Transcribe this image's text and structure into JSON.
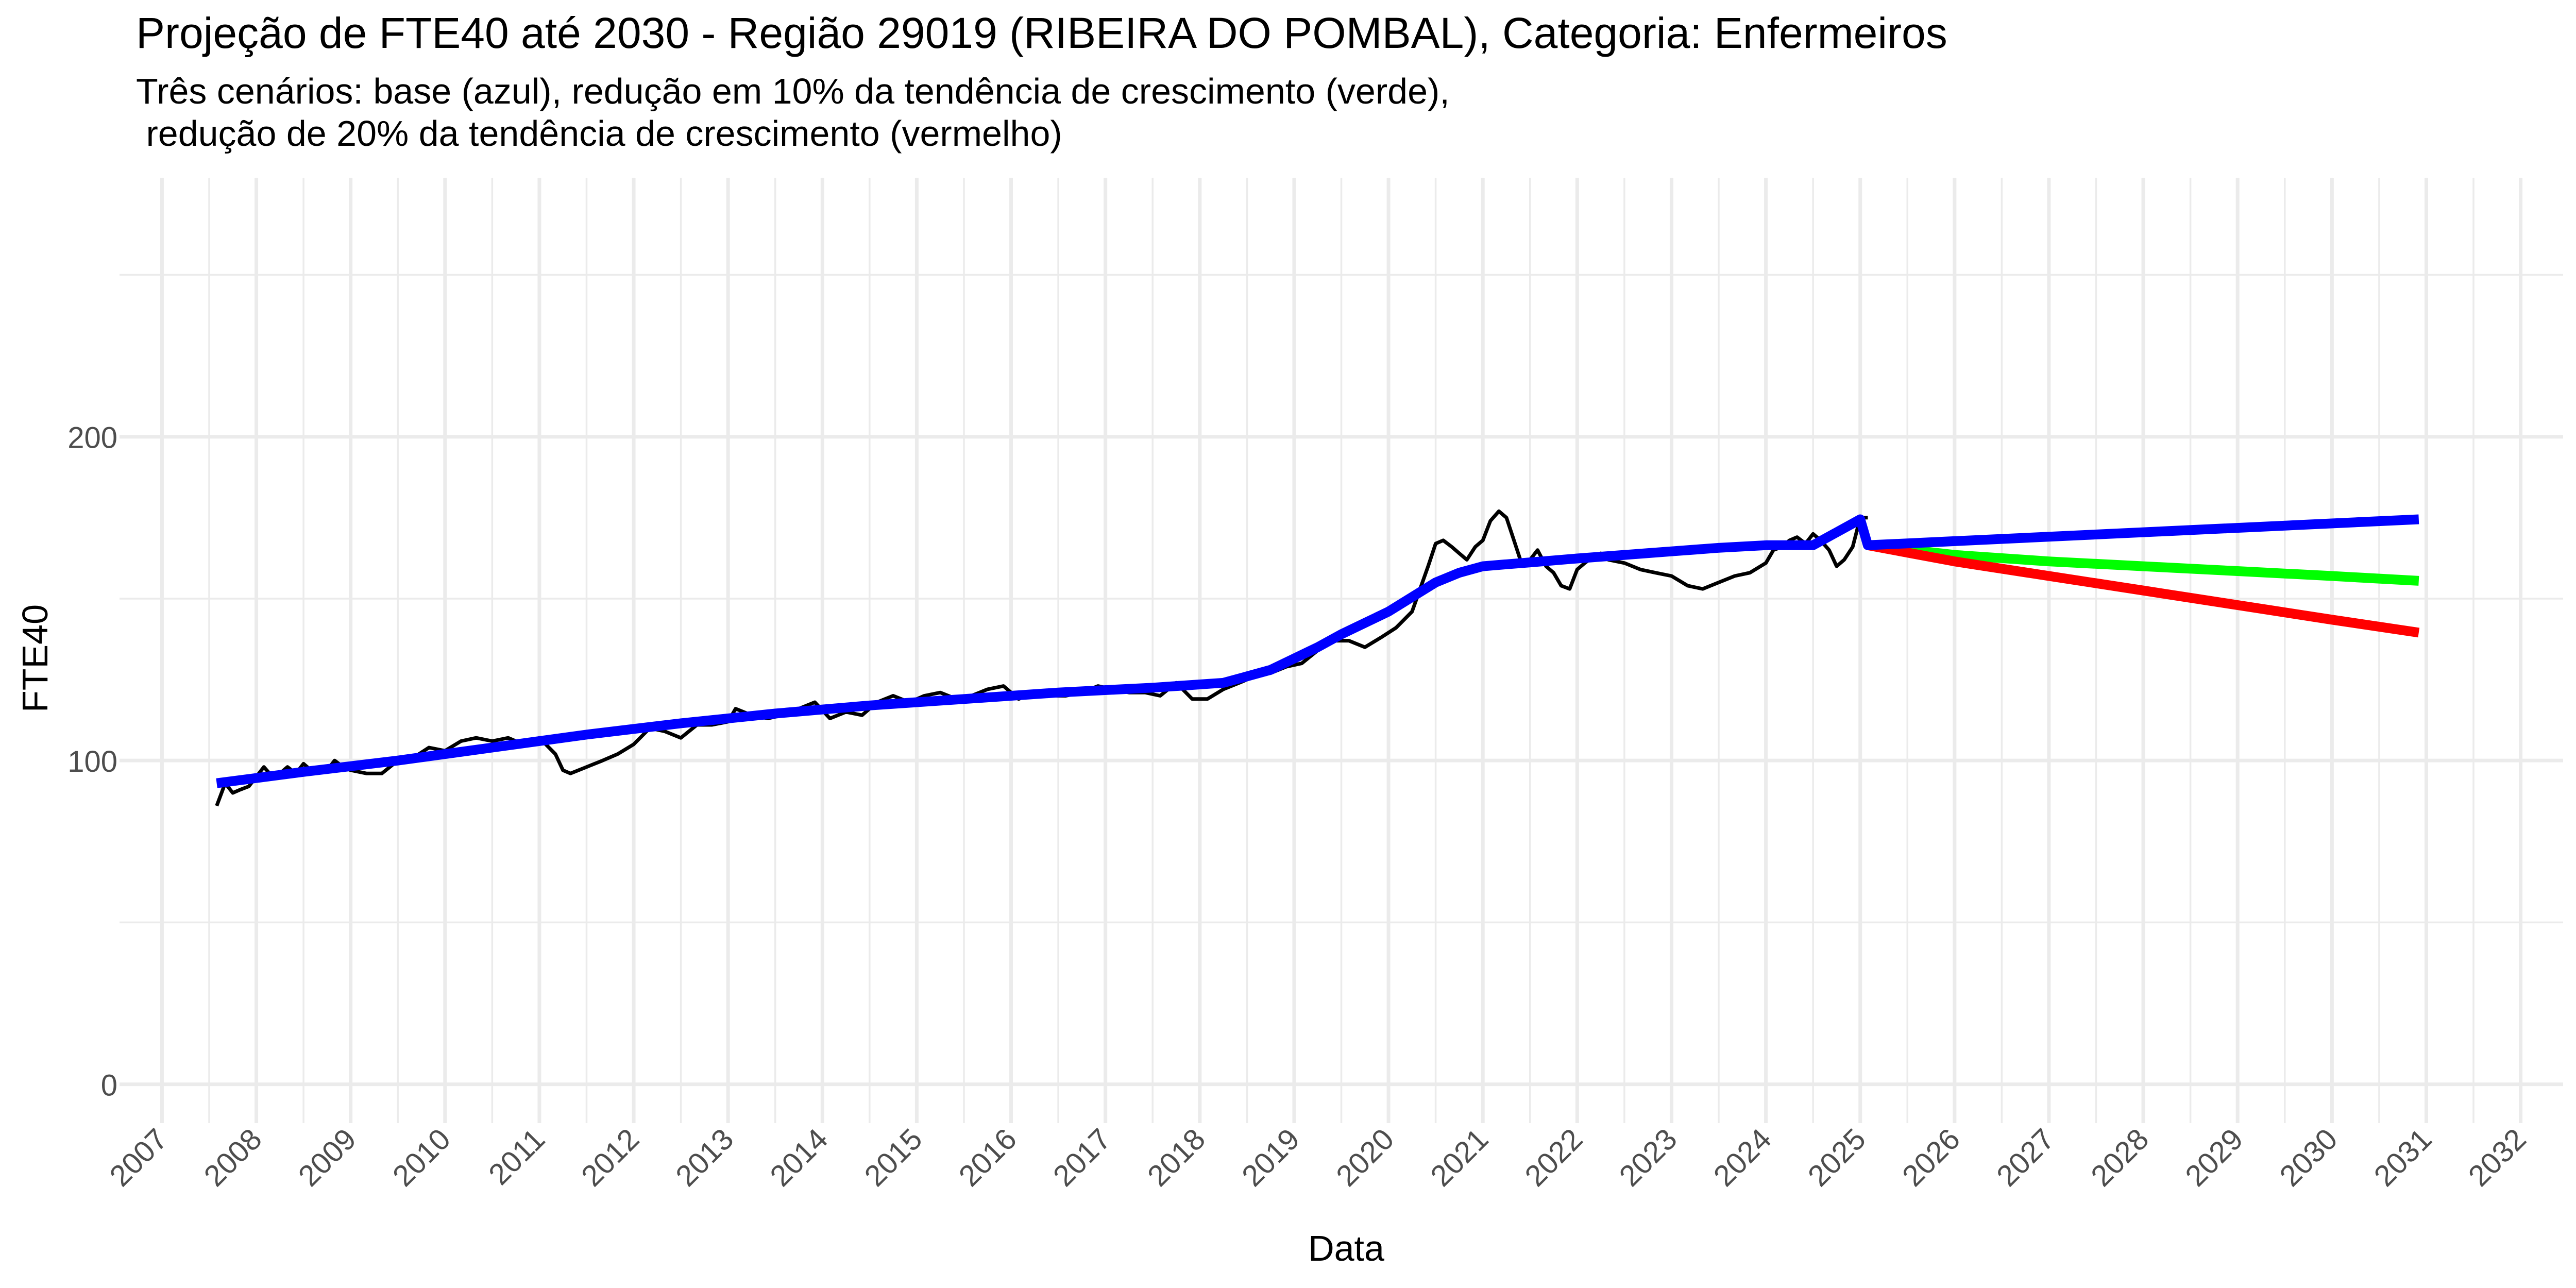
{
  "chart_data": {
    "type": "line",
    "title": "Projeção de FTE40 até 2030 - Região 29019 (RIBEIRA DO POMBAL), Categoria: Enfermeiros",
    "subtitle": "Três cenários: base (azul), redução em 10% da tendência de crescimento (verde),\n redução de 20% da tendência de crescimento (vermelho)",
    "xlabel": "Data",
    "ylabel": "FTE40",
    "xlim": [
      2006.55,
      2032.45
    ],
    "ylim": [
      -12,
      280
    ],
    "x_ticks": [
      2007,
      2008,
      2009,
      2010,
      2011,
      2012,
      2013,
      2014,
      2015,
      2016,
      2017,
      2018,
      2019,
      2020,
      2021,
      2022,
      2023,
      2024,
      2025,
      2026,
      2027,
      2028,
      2029,
      2030,
      2031,
      2032
    ],
    "y_ticks": [
      0,
      100,
      200
    ],
    "grid": true,
    "legend": "none",
    "series": [
      {
        "color": "#000000",
        "x": [
          2007.58,
          2007.67,
          2007.75,
          2007.83,
          2007.92,
          2008.0,
          2008.08,
          2008.17,
          2008.25,
          2008.33,
          2008.42,
          2008.5,
          2008.58,
          2008.67,
          2008.75,
          2008.83,
          2008.92,
          2009.0,
          2009.17,
          2009.33,
          2009.5,
          2009.67,
          2009.83,
          2010.0,
          2010.17,
          2010.33,
          2010.5,
          2010.67,
          2010.83,
          2011.0,
          2011.17,
          2011.25,
          2011.33,
          2011.5,
          2011.67,
          2011.83,
          2012.0,
          2012.17,
          2012.33,
          2012.5,
          2012.67,
          2012.83,
          2013.0,
          2013.08,
          2013.25,
          2013.42,
          2013.58,
          2013.75,
          2013.92,
          2014.08,
          2014.25,
          2014.42,
          2014.58,
          2014.75,
          2014.92,
          2015.08,
          2015.25,
          2015.42,
          2015.58,
          2015.75,
          2015.92,
          2016.08,
          2016.25,
          2016.42,
          2016.58,
          2016.75,
          2016.92,
          2017.08,
          2017.25,
          2017.42,
          2017.58,
          2017.75,
          2017.92,
          2018.08,
          2018.25,
          2018.42,
          2018.58,
          2018.75,
          2018.92,
          2019.08,
          2019.25,
          2019.42,
          2019.58,
          2019.75,
          2019.92,
          2020.08,
          2020.25,
          2020.42,
          2020.5,
          2020.58,
          2020.67,
          2020.75,
          2020.83,
          2020.92,
          2021.0,
          2021.08,
          2021.17,
          2021.25,
          2021.33,
          2021.42,
          2021.5,
          2021.58,
          2021.67,
          2021.75,
          2021.83,
          2021.92,
          2022.0,
          2022.08,
          2022.17,
          2022.25,
          2022.33,
          2022.5,
          2022.67,
          2022.83,
          2023.0,
          2023.17,
          2023.33,
          2023.5,
          2023.67,
          2023.83,
          2024.0,
          2024.08,
          2024.17,
          2024.25,
          2024.33,
          2024.42,
          2024.5,
          2024.58,
          2024.67,
          2024.75,
          2024.83,
          2024.92,
          2025.0,
          2025.08
        ],
        "y": [
          86,
          93,
          90,
          91,
          92,
          95,
          98,
          95,
          96,
          98,
          96,
          99,
          97,
          98,
          97,
          100,
          98,
          97,
          96,
          96,
          100,
          101,
          104,
          103,
          106,
          107,
          106,
          107,
          105,
          107,
          102,
          97,
          96,
          98,
          100,
          102,
          105,
          110,
          109,
          107,
          111,
          111,
          112,
          116,
          114,
          113,
          114,
          116,
          118,
          113,
          115,
          114,
          118,
          120,
          118,
          120,
          121,
          119,
          120,
          122,
          123,
          119,
          121,
          120,
          120,
          121,
          123,
          122,
          121,
          121,
          120,
          124,
          119,
          119,
          122,
          124,
          126,
          127,
          129,
          130,
          134,
          137,
          137,
          135,
          138,
          141,
          146,
          160,
          167,
          168,
          166,
          164,
          162,
          166,
          168,
          174,
          177,
          175,
          168,
          160,
          162,
          165,
          160,
          158,
          154,
          153,
          159,
          161,
          163,
          164,
          162,
          161,
          159,
          158,
          157,
          154,
          153,
          155,
          157,
          158,
          161,
          165,
          166,
          168,
          169,
          167,
          170,
          168,
          165,
          160,
          162,
          166,
          175,
          175
        ]
      },
      {
        "color": "#0000ff",
        "x": [
          2007.58,
          2008.5,
          2009.5,
          2010.5,
          2011.5,
          2012.5,
          2013.5,
          2014.5,
          2015.5,
          2016.5,
          2017.5,
          2018.25,
          2018.5,
          2018.75,
          2019.0,
          2019.25,
          2019.5,
          2019.75,
          2020.0,
          2020.25,
          2020.5,
          2020.75,
          2021.0,
          2021.25,
          2021.5,
          2021.75,
          2022.0,
          2022.5,
          2023.0,
          2023.5,
          2024.0,
          2024.5,
          2025.0,
          2025.08,
          2030.92
        ],
        "y": [
          93,
          96.5,
          100,
          104,
          108,
          111.5,
          114.5,
          117,
          119,
          121,
          122.5,
          124,
          126,
          128,
          131.5,
          135,
          139,
          142.5,
          146,
          150.5,
          155,
          158,
          160,
          160.6,
          161.2,
          161.8,
          162.4,
          163.5,
          164.6,
          165.7,
          166.5,
          166.5,
          174.5,
          166.5,
          174.5
        ]
      },
      {
        "color": "#00ff00",
        "x": [
          2025.08,
          2026.0,
          2027.0,
          2028.0,
          2029.0,
          2030.0,
          2030.92
        ],
        "y": [
          166.5,
          163.5,
          161.5,
          160,
          158.5,
          157,
          155.5
        ]
      },
      {
        "color": "#ff0000",
        "x": [
          2025.08,
          2026.0,
          2027.0,
          2028.0,
          2029.0,
          2030.0,
          2030.92
        ],
        "y": [
          166.5,
          161.5,
          157,
          152.5,
          148,
          143.5,
          139.5
        ]
      }
    ]
  }
}
